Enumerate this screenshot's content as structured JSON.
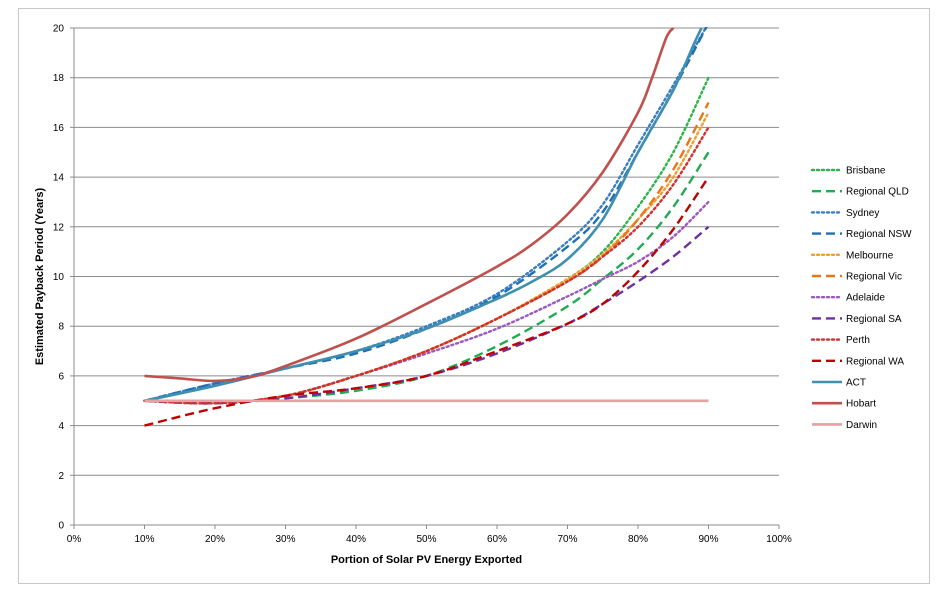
{
  "chart_data": {
    "type": "line",
    "title": "",
    "xlabel": "Portion of Solar PV Energy Exported",
    "ylabel": "Estimated Payback Period (Years)",
    "xlim": [
      0,
      100
    ],
    "ylim": [
      0,
      20
    ],
    "x_ticks": [
      "0%",
      "10%",
      "20%",
      "30%",
      "40%",
      "50%",
      "60%",
      "70%",
      "80%",
      "90%",
      "100%"
    ],
    "y_ticks": [
      "0",
      "2",
      "4",
      "6",
      "8",
      "10",
      "12",
      "14",
      "16",
      "18",
      "20"
    ],
    "grid": "horizontal",
    "legend_position": "right",
    "series": [
      {
        "name": "Brisbane",
        "color": "#2fb34a",
        "dash": "dotted",
        "points": [
          [
            10,
            5
          ],
          [
            20,
            4.9
          ],
          [
            30,
            5.2
          ],
          [
            40,
            6
          ],
          [
            50,
            7
          ],
          [
            60,
            8.3
          ],
          [
            70,
            9.9
          ],
          [
            75,
            11
          ],
          [
            80,
            12.8
          ],
          [
            85,
            15
          ],
          [
            90,
            18
          ]
        ]
      },
      {
        "name": "Regional QLD",
        "color": "#22aa55",
        "dash": "dashed",
        "points": [
          [
            10,
            5
          ],
          [
            20,
            4.9
          ],
          [
            30,
            5.1
          ],
          [
            40,
            5.4
          ],
          [
            50,
            6
          ],
          [
            60,
            7.2
          ],
          [
            70,
            8.8
          ],
          [
            75,
            9.9
          ],
          [
            80,
            11.1
          ],
          [
            85,
            12.8
          ],
          [
            90,
            15
          ]
        ]
      },
      {
        "name": "Sydney",
        "color": "#3a7dc0",
        "dash": "dotted",
        "points": [
          [
            10,
            5
          ],
          [
            20,
            5.7
          ],
          [
            30,
            6.3
          ],
          [
            40,
            7
          ],
          [
            50,
            8
          ],
          [
            60,
            9.3
          ],
          [
            70,
            11.4
          ],
          [
            75,
            12.9
          ],
          [
            80,
            15.3
          ],
          [
            85,
            17.7
          ],
          [
            90,
            20.2
          ]
        ]
      },
      {
        "name": "Regional NSW",
        "color": "#1f6fb6",
        "dash": "dashed",
        "points": [
          [
            10,
            5
          ],
          [
            20,
            5.7
          ],
          [
            30,
            6.3
          ],
          [
            40,
            6.9
          ],
          [
            50,
            7.9
          ],
          [
            60,
            9.2
          ],
          [
            70,
            11.2
          ],
          [
            75,
            12.6
          ],
          [
            80,
            15
          ],
          [
            85,
            17.5
          ],
          [
            90,
            20.2
          ]
        ]
      },
      {
        "name": "Melbourne",
        "color": "#f0a030",
        "dash": "dotted",
        "points": [
          [
            10,
            5
          ],
          [
            20,
            4.9
          ],
          [
            30,
            5.2
          ],
          [
            40,
            6
          ],
          [
            50,
            7
          ],
          [
            60,
            8.3
          ],
          [
            70,
            9.9
          ],
          [
            75,
            10.9
          ],
          [
            80,
            12.3
          ],
          [
            85,
            14
          ],
          [
            90,
            16.6
          ]
        ]
      },
      {
        "name": "Regional Vic",
        "color": "#e8761a",
        "dash": "dashed",
        "points": [
          [
            10,
            5
          ],
          [
            20,
            4.9
          ],
          [
            30,
            5.2
          ],
          [
            40,
            6
          ],
          [
            50,
            7
          ],
          [
            60,
            8.3
          ],
          [
            70,
            9.8
          ],
          [
            75,
            10.8
          ],
          [
            80,
            12.3
          ],
          [
            85,
            14.3
          ],
          [
            90,
            17
          ]
        ]
      },
      {
        "name": "Adelaide",
        "color": "#9b59c0",
        "dash": "dotted",
        "points": [
          [
            10,
            5
          ],
          [
            20,
            4.9
          ],
          [
            30,
            5.2
          ],
          [
            40,
            6
          ],
          [
            50,
            6.9
          ],
          [
            60,
            7.9
          ],
          [
            70,
            9.2
          ],
          [
            75,
            9.9
          ],
          [
            80,
            10.6
          ],
          [
            85,
            11.6
          ],
          [
            90,
            13
          ]
        ]
      },
      {
        "name": "Regional SA",
        "color": "#7030a0",
        "dash": "dashed",
        "points": [
          [
            10,
            5
          ],
          [
            20,
            4.9
          ],
          [
            30,
            5.1
          ],
          [
            40,
            5.5
          ],
          [
            50,
            6
          ],
          [
            60,
            6.9
          ],
          [
            70,
            8.1
          ],
          [
            75,
            8.9
          ],
          [
            80,
            9.8
          ],
          [
            85,
            10.8
          ],
          [
            90,
            12
          ]
        ]
      },
      {
        "name": "Perth",
        "color": "#d03030",
        "dash": "dotted",
        "points": [
          [
            10,
            5
          ],
          [
            20,
            4.9
          ],
          [
            30,
            5.2
          ],
          [
            40,
            6
          ],
          [
            50,
            7
          ],
          [
            60,
            8.3
          ],
          [
            70,
            9.8
          ],
          [
            75,
            10.8
          ],
          [
            80,
            12
          ],
          [
            85,
            13.7
          ],
          [
            90,
            16
          ]
        ]
      },
      {
        "name": "Regional WA",
        "color": "#c00000",
        "dash": "dashed",
        "points": [
          [
            10,
            4
          ],
          [
            20,
            4.7
          ],
          [
            30,
            5.2
          ],
          [
            40,
            5.5
          ],
          [
            50,
            6
          ],
          [
            60,
            7
          ],
          [
            70,
            8.1
          ],
          [
            75,
            8.9
          ],
          [
            80,
            10.2
          ],
          [
            85,
            11.9
          ],
          [
            90,
            14
          ]
        ]
      },
      {
        "name": "ACT",
        "color": "#3e8fb0",
        "dash": "solid",
        "points": [
          [
            10,
            5
          ],
          [
            20,
            5.6
          ],
          [
            30,
            6.3
          ],
          [
            40,
            7
          ],
          [
            50,
            7.9
          ],
          [
            60,
            9.1
          ],
          [
            65,
            9.8
          ],
          [
            70,
            10.7
          ],
          [
            75,
            12.3
          ],
          [
            80,
            15
          ],
          [
            85,
            17.5
          ],
          [
            88,
            19.4
          ],
          [
            89,
            20
          ]
        ]
      },
      {
        "name": "Hobart",
        "color": "#c0504d",
        "dash": "solid",
        "points": [
          [
            10,
            6
          ],
          [
            15,
            5.9
          ],
          [
            20,
            5.8
          ],
          [
            25,
            5.95
          ],
          [
            30,
            6.4
          ],
          [
            40,
            7.5
          ],
          [
            50,
            8.9
          ],
          [
            60,
            10.4
          ],
          [
            65,
            11.3
          ],
          [
            70,
            12.5
          ],
          [
            75,
            14.2
          ],
          [
            80,
            16.6
          ],
          [
            82,
            18
          ],
          [
            84,
            19.6
          ],
          [
            85,
            20
          ]
        ]
      },
      {
        "name": "Darwin",
        "color": "#e6a1a0",
        "dash": "solid",
        "points": [
          [
            10,
            5
          ],
          [
            20,
            5
          ],
          [
            30,
            5
          ],
          [
            40,
            5
          ],
          [
            50,
            5
          ],
          [
            60,
            5
          ],
          [
            70,
            5
          ],
          [
            80,
            5
          ],
          [
            90,
            5
          ]
        ]
      }
    ]
  }
}
